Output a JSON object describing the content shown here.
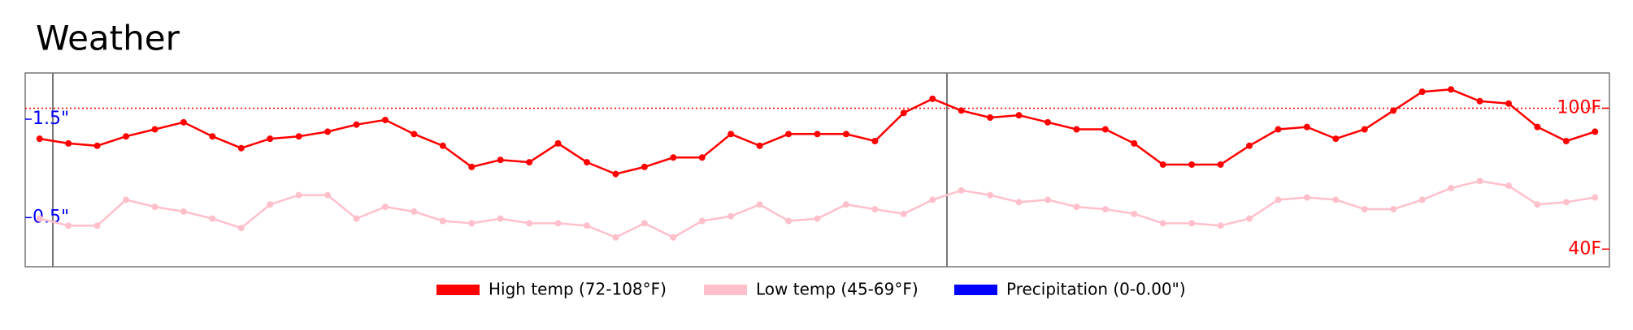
{
  "chart_data": {
    "type": "line",
    "title": "Weather",
    "ylim": [
      32.5,
      115
    ],
    "yticks": [
      {
        "value": 40,
        "label": "40F"
      },
      {
        "value": 100,
        "label": "100F"
      }
    ],
    "y2lim": [
      0,
      1.97
    ],
    "y2ticks": [
      {
        "value": 0.5,
        "label": "0.5\""
      },
      {
        "value": 1.5,
        "label": "1.5\""
      }
    ],
    "hline": 100,
    "series": [
      {
        "name": "High temp (72-108°F)",
        "color": "#ff0000",
        "values": [
          87,
          85,
          84,
          88,
          91,
          94,
          88,
          83,
          87,
          88,
          90,
          93,
          95,
          89,
          84,
          75,
          78,
          77,
          85,
          77,
          72,
          75,
          79,
          79,
          89,
          84,
          89,
          89,
          89,
          86,
          98,
          104,
          99,
          96,
          97,
          94,
          91,
          91,
          85,
          76,
          76,
          76,
          84,
          91,
          92,
          87,
          91,
          99,
          107,
          108,
          103,
          102,
          92,
          86,
          90
        ]
      },
      {
        "name": "Low temp (45-69°F)",
        "color": "#ffc0cb",
        "values": [
          53,
          50,
          50,
          61,
          58,
          56,
          53,
          49,
          59,
          63,
          63,
          53,
          58,
          56,
          52,
          51,
          53,
          51,
          51,
          50,
          45,
          51,
          45,
          52,
          54,
          59,
          52,
          53,
          59,
          57,
          55,
          61,
          65,
          63,
          60,
          61,
          58,
          57,
          55,
          51,
          51,
          50,
          53,
          61,
          62,
          61,
          57,
          57,
          61,
          66,
          69,
          67,
          59,
          60,
          62
        ]
      },
      {
        "name": "Precipitation (0-0.00\")",
        "color": "#0000ff",
        "axis": "y2",
        "type": "bar",
        "values": [
          0,
          0,
          0,
          0,
          0,
          0,
          0,
          0,
          0,
          0,
          0,
          0,
          0,
          0,
          0,
          0,
          0,
          0,
          0,
          0,
          0,
          0,
          0,
          0,
          0,
          0,
          0,
          0,
          0,
          0,
          0,
          0,
          0,
          0,
          0,
          0,
          0,
          0,
          0,
          0,
          0,
          0,
          0,
          0,
          0,
          0,
          0,
          0,
          0,
          0,
          0,
          0,
          0,
          0,
          0
        ]
      }
    ]
  }
}
